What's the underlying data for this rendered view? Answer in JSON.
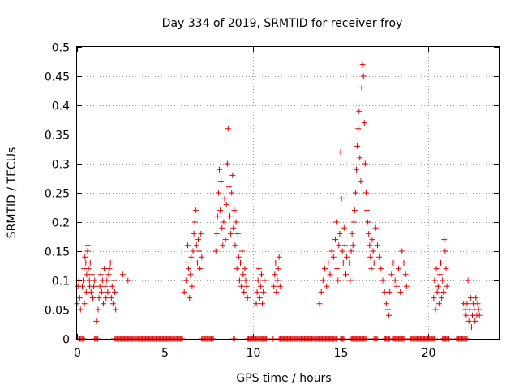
{
  "chart_data": {
    "type": "scatter",
    "title": "Day 334 of 2019, SRMTID for receiver froy",
    "xlabel": "GPS time / hours",
    "ylabel": "SRMTID / TECUs",
    "xlim": [
      0,
      24
    ],
    "ylim": [
      0,
      0.5
    ],
    "x_ticks": [
      0,
      5,
      10,
      15,
      20
    ],
    "y_ticks": [
      0,
      0.05,
      0.1,
      0.15,
      0.2,
      0.25,
      0.3,
      0.35,
      0.4,
      0.45,
      0.5
    ],
    "x_tick_labels": [
      "0",
      "5",
      "10",
      "15",
      "20"
    ],
    "y_tick_labels": [
      "0",
      "0.05",
      "0.1",
      "0.15",
      "0.2",
      "0.25",
      "0.3",
      "0.35",
      "0.4",
      "0.45",
      "0.5"
    ],
    "grid": true,
    "marker": "+",
    "color": "#e00000",
    "series": [
      {
        "name": "SRMTID",
        "points": [
          [
            0.0,
            0.06
          ],
          [
            0.05,
            0.09
          ],
          [
            0.1,
            0.1
          ],
          [
            0.15,
            0.07
          ],
          [
            0.2,
            0.05
          ],
          [
            0.3,
            0.09
          ],
          [
            0.35,
            0.1
          ],
          [
            0.4,
            0.12
          ],
          [
            0.42,
            0.06
          ],
          [
            0.45,
            0.14
          ],
          [
            0.5,
            0.13
          ],
          [
            0.52,
            0.08
          ],
          [
            0.55,
            0.11
          ],
          [
            0.6,
            0.15
          ],
          [
            0.62,
            0.16
          ],
          [
            0.65,
            0.12
          ],
          [
            0.7,
            0.1
          ],
          [
            0.72,
            0.09
          ],
          [
            0.75,
            0.13
          ],
          [
            0.8,
            0.08
          ],
          [
            0.85,
            0.11
          ],
          [
            0.9,
            0.07
          ],
          [
            0.95,
            0.09
          ],
          [
            1.0,
            0.1
          ],
          [
            1.1,
            0.03
          ],
          [
            1.2,
            0.05
          ],
          [
            1.25,
            0.07
          ],
          [
            1.3,
            0.09
          ],
          [
            1.35,
            0.11
          ],
          [
            1.4,
            0.08
          ],
          [
            1.45,
            0.1
          ],
          [
            1.5,
            0.06
          ],
          [
            1.55,
            0.12
          ],
          [
            1.6,
            0.09
          ],
          [
            1.65,
            0.07
          ],
          [
            1.7,
            0.1
          ],
          [
            1.75,
            0.08
          ],
          [
            1.8,
            0.11
          ],
          [
            1.85,
            0.12
          ],
          [
            1.9,
            0.13
          ],
          [
            1.95,
            0.07
          ],
          [
            2.0,
            0.09
          ],
          [
            2.05,
            0.06
          ],
          [
            2.1,
            0.1
          ],
          [
            2.15,
            0.08
          ],
          [
            2.2,
            0.05
          ],
          [
            2.6,
            0.11
          ],
          [
            2.9,
            0.1
          ],
          [
            6.1,
            0.08
          ],
          [
            6.2,
            0.1
          ],
          [
            6.25,
            0.13
          ],
          [
            6.3,
            0.16
          ],
          [
            6.35,
            0.12
          ],
          [
            6.4,
            0.07
          ],
          [
            6.45,
            0.11
          ],
          [
            6.5,
            0.14
          ],
          [
            6.55,
            0.09
          ],
          [
            6.6,
            0.15
          ],
          [
            6.65,
            0.18
          ],
          [
            6.7,
            0.2
          ],
          [
            6.75,
            0.22
          ],
          [
            6.8,
            0.16
          ],
          [
            6.85,
            0.13
          ],
          [
            6.9,
            0.17
          ],
          [
            6.95,
            0.15
          ],
          [
            7.0,
            0.12
          ],
          [
            7.05,
            0.18
          ],
          [
            7.1,
            0.14
          ],
          [
            7.9,
            0.15
          ],
          [
            7.95,
            0.18
          ],
          [
            8.0,
            0.21
          ],
          [
            8.05,
            0.25
          ],
          [
            8.1,
            0.29
          ],
          [
            8.15,
            0.22
          ],
          [
            8.2,
            0.27
          ],
          [
            8.25,
            0.19
          ],
          [
            8.3,
            0.16
          ],
          [
            8.35,
            0.2
          ],
          [
            8.4,
            0.24
          ],
          [
            8.45,
            0.17
          ],
          [
            8.5,
            0.23
          ],
          [
            8.55,
            0.3
          ],
          [
            8.6,
            0.36
          ],
          [
            8.65,
            0.26
          ],
          [
            8.7,
            0.21
          ],
          [
            8.75,
            0.18
          ],
          [
            8.8,
            0.25
          ],
          [
            8.85,
            0.28
          ],
          [
            8.9,
            0.19
          ],
          [
            8.95,
            0.22
          ],
          [
            9.0,
            0.16
          ],
          [
            9.05,
            0.2
          ],
          [
            9.1,
            0.12
          ],
          [
            9.15,
            0.18
          ],
          [
            9.2,
            0.14
          ],
          [
            9.25,
            0.1
          ],
          [
            9.3,
            0.13
          ],
          [
            9.35,
            0.09
          ],
          [
            9.4,
            0.15
          ],
          [
            9.45,
            0.11
          ],
          [
            9.5,
            0.08
          ],
          [
            9.55,
            0.12
          ],
          [
            9.6,
            0.1
          ],
          [
            9.65,
            0.09
          ],
          [
            9.7,
            0.07
          ],
          [
            10.2,
            0.06
          ],
          [
            10.25,
            0.08
          ],
          [
            10.3,
            0.1
          ],
          [
            10.35,
            0.12
          ],
          [
            10.4,
            0.07
          ],
          [
            10.45,
            0.09
          ],
          [
            10.5,
            0.11
          ],
          [
            10.55,
            0.06
          ],
          [
            10.6,
            0.08
          ],
          [
            10.65,
            0.1
          ],
          [
            11.2,
            0.09
          ],
          [
            11.25,
            0.11
          ],
          [
            11.3,
            0.13
          ],
          [
            11.35,
            0.08
          ],
          [
            11.4,
            0.1
          ],
          [
            11.45,
            0.12
          ],
          [
            11.5,
            0.14
          ],
          [
            11.55,
            0.09
          ],
          [
            13.8,
            0.06
          ],
          [
            13.9,
            0.08
          ],
          [
            14.0,
            0.1
          ],
          [
            14.1,
            0.12
          ],
          [
            14.2,
            0.09
          ],
          [
            14.3,
            0.13
          ],
          [
            14.4,
            0.11
          ],
          [
            14.5,
            0.15
          ],
          [
            14.6,
            0.14
          ],
          [
            14.7,
            0.17
          ],
          [
            14.75,
            0.2
          ],
          [
            14.8,
            0.12
          ],
          [
            14.85,
            0.1
          ],
          [
            14.9,
            0.16
          ],
          [
            14.95,
            0.18
          ],
          [
            15.0,
            0.32
          ],
          [
            15.05,
            0.24
          ],
          [
            15.1,
            0.15
          ],
          [
            15.15,
            0.13
          ],
          [
            15.2,
            0.19
          ],
          [
            15.25,
            0.16
          ],
          [
            15.3,
            0.11
          ],
          [
            15.35,
            0.14
          ],
          [
            15.5,
            0.13
          ],
          [
            15.55,
            0.1
          ],
          [
            15.6,
            0.15
          ],
          [
            15.65,
            0.18
          ],
          [
            15.7,
            0.16
          ],
          [
            15.75,
            0.2
          ],
          [
            15.8,
            0.22
          ],
          [
            15.85,
            0.25
          ],
          [
            15.9,
            0.29
          ],
          [
            15.95,
            0.33
          ],
          [
            16.0,
            0.36
          ],
          [
            16.05,
            0.39
          ],
          [
            16.1,
            0.31
          ],
          [
            16.15,
            0.27
          ],
          [
            16.2,
            0.43
          ],
          [
            16.25,
            0.47
          ],
          [
            16.3,
            0.45
          ],
          [
            16.35,
            0.37
          ],
          [
            16.4,
            0.3
          ],
          [
            16.45,
            0.25
          ],
          [
            16.5,
            0.22
          ],
          [
            16.55,
            0.2
          ],
          [
            16.6,
            0.18
          ],
          [
            16.65,
            0.16
          ],
          [
            16.7,
            0.14
          ],
          [
            16.75,
            0.12
          ],
          [
            16.8,
            0.17
          ],
          [
            16.85,
            0.15
          ],
          [
            16.9,
            0.13
          ],
          [
            17.0,
            0.19
          ],
          [
            17.1,
            0.16
          ],
          [
            17.2,
            0.14
          ],
          [
            17.3,
            0.12
          ],
          [
            17.4,
            0.1
          ],
          [
            17.5,
            0.08
          ],
          [
            17.6,
            0.06
          ],
          [
            17.7,
            0.05
          ],
          [
            17.75,
            0.04
          ],
          [
            17.8,
            0.08
          ],
          [
            17.9,
            0.11
          ],
          [
            18.0,
            0.13
          ],
          [
            18.1,
            0.1
          ],
          [
            18.2,
            0.09
          ],
          [
            18.3,
            0.12
          ],
          [
            18.4,
            0.08
          ],
          [
            18.5,
            0.15
          ],
          [
            18.6,
            0.13
          ],
          [
            18.7,
            0.11
          ],
          [
            18.75,
            0.09
          ],
          [
            20.3,
            0.07
          ],
          [
            20.35,
            0.1
          ],
          [
            20.4,
            0.05
          ],
          [
            20.45,
            0.12
          ],
          [
            20.5,
            0.08
          ],
          [
            20.55,
            0.09
          ],
          [
            20.6,
            0.06
          ],
          [
            20.65,
            0.11
          ],
          [
            20.7,
            0.13
          ],
          [
            20.75,
            0.07
          ],
          [
            20.8,
            0.1
          ],
          [
            20.85,
            0.08
          ],
          [
            20.9,
            0.17
          ],
          [
            20.95,
            0.15
          ],
          [
            21.0,
            0.12
          ],
          [
            21.05,
            0.09
          ],
          [
            22.0,
            0.06
          ],
          [
            22.1,
            0.05
          ],
          [
            22.15,
            0.04
          ],
          [
            22.2,
            0.06
          ],
          [
            22.25,
            0.1
          ],
          [
            22.3,
            0.03
          ],
          [
            22.35,
            0.05
          ],
          [
            22.4,
            0.07
          ],
          [
            22.45,
            0.02
          ],
          [
            22.5,
            0.04
          ],
          [
            22.55,
            0.06
          ],
          [
            22.6,
            0.05
          ],
          [
            22.65,
            0.03
          ],
          [
            22.7,
            0.07
          ],
          [
            22.75,
            0.04
          ],
          [
            22.8,
            0.06
          ],
          [
            22.85,
            0.05
          ],
          [
            22.9,
            0.04
          ]
        ],
        "zero_ranges": [
          [
            0.1,
            0.4
          ],
          [
            1.0,
            1.2
          ],
          [
            2.1,
            6.0
          ],
          [
            7.1,
            7.8
          ],
          [
            8.9,
            9.0
          ],
          [
            9.7,
            10.8
          ],
          [
            11.1,
            11.2
          ],
          [
            11.5,
            14.8
          ],
          [
            15.0,
            15.2
          ],
          [
            15.6,
            16.5
          ],
          [
            16.9,
            17.1
          ],
          [
            17.5,
            17.8
          ],
          [
            18.0,
            18.7
          ],
          [
            19.0,
            20.4
          ],
          [
            20.8,
            21.2
          ],
          [
            21.6,
            22.2
          ]
        ]
      }
    ]
  }
}
